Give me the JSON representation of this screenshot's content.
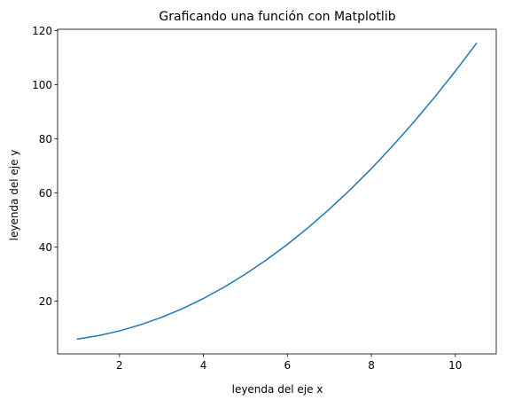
{
  "chart_data": {
    "type": "line",
    "title": "Graficando una función con Matplotlib",
    "xlabel": "leyenda del eje x",
    "ylabel": "leyenda del eje y",
    "xlim": [
      0.525,
      10.975
    ],
    "ylim": [
      0.5,
      120.5
    ],
    "xticks": [
      2,
      4,
      6,
      8,
      10
    ],
    "yticks": [
      20,
      40,
      60,
      80,
      100,
      120
    ],
    "grid": false,
    "colors": {
      "line": "#1f77b4",
      "axes": "#000000"
    },
    "series": [
      {
        "x": [
          1.0,
          1.5,
          2.0,
          2.5,
          3.0,
          3.5,
          4.0,
          4.5,
          5.0,
          5.5,
          6.0,
          6.5,
          7.0,
          7.5,
          8.0,
          8.5,
          9.0,
          9.5,
          10.0,
          10.5
        ],
        "values": [
          6.0,
          7.25,
          9.0,
          11.25,
          14.0,
          17.25,
          21.0,
          25.25,
          30.0,
          35.25,
          41.0,
          47.25,
          54.0,
          61.25,
          69.0,
          77.25,
          86.0,
          95.25,
          105.0,
          115.25
        ]
      }
    ]
  }
}
